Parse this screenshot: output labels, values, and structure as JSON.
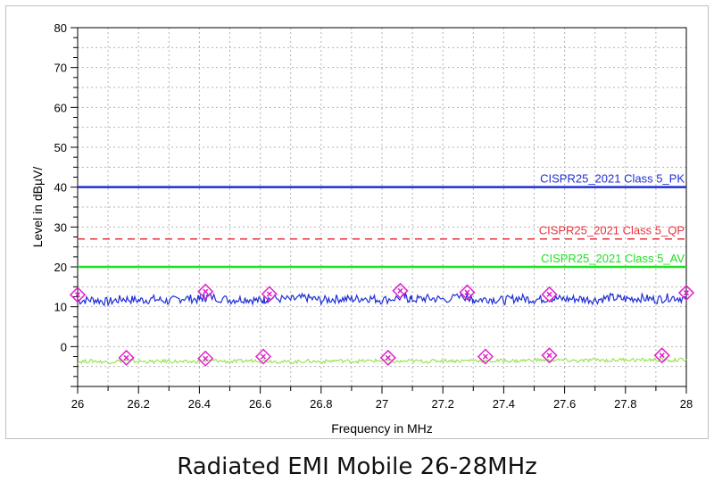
{
  "caption": "Radiated EMI Mobile 26-28MHz",
  "chart_data": {
    "type": "line",
    "xlabel": "Frequency in MHz",
    "ylabel": "Level in dBµV/",
    "xlim": [
      26,
      28
    ],
    "ylim": [
      -10,
      80
    ],
    "x_ticks": [
      "26",
      "26.2",
      "26.4",
      "26.6",
      "26.8",
      "27",
      "27.2",
      "27.4",
      "27.6",
      "27.8",
      "28"
    ],
    "y_ticks": [
      "80",
      "70",
      "60",
      "50",
      "40",
      "30",
      "20",
      "10",
      "0"
    ],
    "grid": true,
    "limit_lines": [
      {
        "name": "CISPR25_2021 Class 5_PK",
        "value": 40,
        "color": "#1f2fd6",
        "style": "solid"
      },
      {
        "name": "CISPR25_2021 Class 5_QP",
        "value": 27,
        "color": "#e8323c",
        "style": "dashed"
      },
      {
        "name": "CISPR25_2021 Class 5_AV",
        "value": 20,
        "color": "#1ee01e",
        "style": "solid"
      }
    ],
    "series": [
      {
        "color": "#1f2fd6",
        "x": [
          26.0,
          26.05,
          26.1,
          26.15,
          26.2,
          26.25,
          26.3,
          26.35,
          26.4,
          26.43,
          26.5,
          26.55,
          26.6,
          26.63,
          26.7,
          26.75,
          26.8,
          26.85,
          26.9,
          26.95,
          27.0,
          27.07,
          27.1,
          27.15,
          27.2,
          27.28,
          27.3,
          27.35,
          27.4,
          27.45,
          27.5,
          27.55,
          27.6,
          27.65,
          27.7,
          27.75,
          27.8,
          27.85,
          27.9,
          27.95,
          28.0
        ],
        "values": [
          11.5,
          11.8,
          11.2,
          12.0,
          11.6,
          11.9,
          11.4,
          12.2,
          11.8,
          12.6,
          11.7,
          12.0,
          11.5,
          12.1,
          11.8,
          12.3,
          11.6,
          12.0,
          11.9,
          12.2,
          11.7,
          12.4,
          11.8,
          12.1,
          11.9,
          12.5,
          11.7,
          12.0,
          11.6,
          12.2,
          11.8,
          12.1,
          11.9,
          12.0,
          11.7,
          12.3,
          11.9,
          12.2,
          11.8,
          12.4,
          12.0
        ]
      },
      {
        "color": "#9be35a",
        "x": [
          26.0,
          26.05,
          26.1,
          26.15,
          26.2,
          26.25,
          26.3,
          26.35,
          26.4,
          26.45,
          26.5,
          26.55,
          26.6,
          26.65,
          26.7,
          26.75,
          26.8,
          26.85,
          26.9,
          26.95,
          27.0,
          27.05,
          27.1,
          27.15,
          27.2,
          27.25,
          27.3,
          27.35,
          27.4,
          27.45,
          27.5,
          27.55,
          27.6,
          27.65,
          27.7,
          27.75,
          27.8,
          27.85,
          27.9,
          27.95,
          28.0
        ],
        "values": [
          -3.8,
          -3.6,
          -3.9,
          -3.5,
          -3.7,
          -3.8,
          -3.6,
          -3.9,
          -3.7,
          -3.5,
          -3.8,
          -3.6,
          -3.4,
          -3.7,
          -3.9,
          -3.6,
          -3.8,
          -3.5,
          -3.7,
          -3.6,
          -3.5,
          -3.8,
          -3.6,
          -3.7,
          -3.5,
          -3.6,
          -3.4,
          -3.7,
          -3.5,
          -3.6,
          -3.3,
          -3.5,
          -3.4,
          -3.6,
          -3.3,
          -3.5,
          -3.2,
          -3.4,
          -3.3,
          -3.5,
          -3.2
        ]
      }
    ],
    "markers": [
      {
        "x": 26.0,
        "y": 13.0,
        "color": "#e020c8"
      },
      {
        "x": 26.42,
        "y": 13.8,
        "color": "#e020c8"
      },
      {
        "x": 26.63,
        "y": 13.2,
        "color": "#e020c8"
      },
      {
        "x": 27.06,
        "y": 14.0,
        "color": "#e020c8"
      },
      {
        "x": 27.28,
        "y": 13.6,
        "color": "#e020c8"
      },
      {
        "x": 27.55,
        "y": 13.1,
        "color": "#e020c8"
      },
      {
        "x": 28.0,
        "y": 13.5,
        "color": "#e020c8"
      },
      {
        "x": 26.16,
        "y": -2.8,
        "color": "#e020c8"
      },
      {
        "x": 26.42,
        "y": -3.0,
        "color": "#e020c8"
      },
      {
        "x": 26.61,
        "y": -2.5,
        "color": "#e020c8"
      },
      {
        "x": 27.02,
        "y": -2.8,
        "color": "#e020c8"
      },
      {
        "x": 27.34,
        "y": -2.5,
        "color": "#e020c8"
      },
      {
        "x": 27.55,
        "y": -2.2,
        "color": "#e020c8"
      },
      {
        "x": 27.92,
        "y": -2.2,
        "color": "#e020c8"
      }
    ]
  }
}
